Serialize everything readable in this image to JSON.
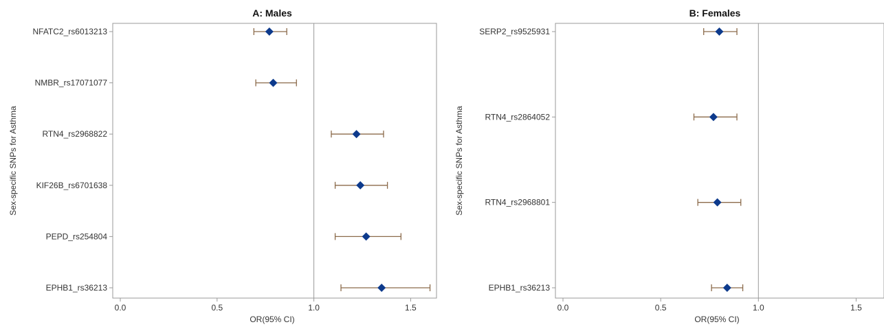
{
  "chart_data": [
    {
      "type": "scatter",
      "title": "A: Males",
      "xlabel": "OR(95% CI)",
      "ylabel": "Sex-specific SNPs for Asthma",
      "xlim": [
        -0.03,
        1.6
      ],
      "xticks": [
        "0.0",
        "0.5",
        "1.0",
        "1.5"
      ],
      "reference_line": 1.0,
      "categories": [
        "NFATC2_rs6013213",
        "NMBR_rs17071077",
        "RTN4_rs2968822",
        "KIF26B_rs6701638",
        "PEPD_rs254804",
        "EPHB1_rs36213"
      ],
      "or": [
        0.77,
        0.79,
        1.22,
        1.24,
        1.27,
        1.35
      ],
      "ci_low": [
        0.69,
        0.7,
        1.09,
        1.11,
        1.11,
        1.14
      ],
      "ci_high": [
        0.86,
        0.91,
        1.36,
        1.38,
        1.45,
        1.6
      ],
      "marker_color": "#0d3a8c",
      "ci_color": "#8b6a4a",
      "grid": false
    },
    {
      "type": "scatter",
      "title": "B: Females",
      "xlabel": "OR(95% CI)",
      "ylabel": "Sex-specific SNPs for Asthma",
      "xlim": [
        -0.03,
        1.6
      ],
      "xticks": [
        "0.0",
        "0.5",
        "1.0",
        "1.5"
      ],
      "reference_line": 1.0,
      "categories": [
        "SERP2_rs9525931",
        "RTN4_rs2864052",
        "RTN4_rs2968801",
        "EPHB1_rs36213"
      ],
      "or": [
        0.8,
        0.77,
        0.79,
        0.84
      ],
      "ci_low": [
        0.72,
        0.67,
        0.69,
        0.76
      ],
      "ci_high": [
        0.89,
        0.89,
        0.91,
        0.92
      ],
      "marker_color": "#0d3a8c",
      "ci_color": "#8b6a4a",
      "grid": false
    }
  ]
}
